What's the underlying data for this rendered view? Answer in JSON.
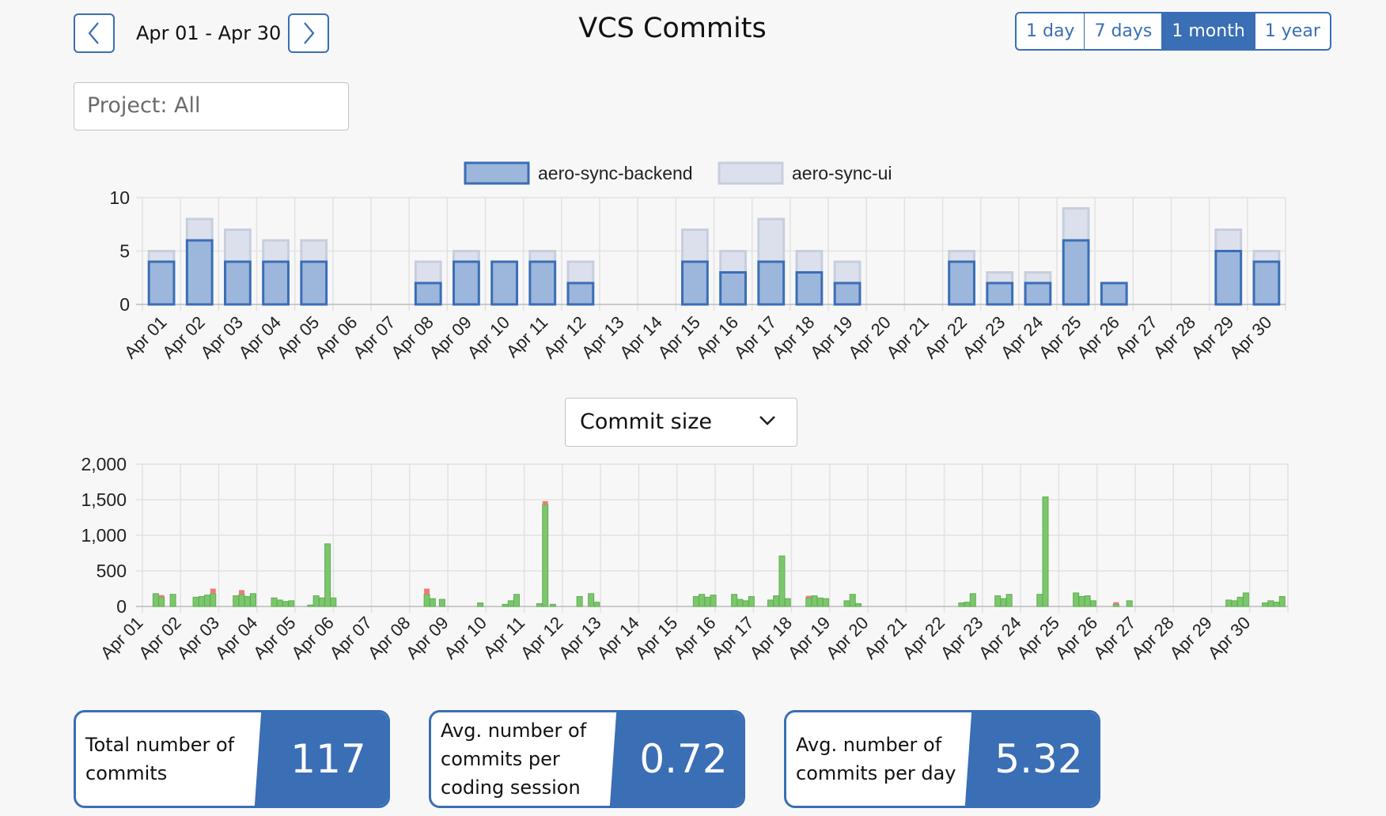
{
  "header": {
    "date_range": "Apr 01 - Apr 30",
    "title": "VCS Commits",
    "ranges": [
      "1 day",
      "7 days",
      "1 month",
      "1 year"
    ],
    "active_range": "1 month",
    "prev_icon": "chevron-left-icon",
    "next_icon": "chevron-right-icon"
  },
  "filters": {
    "project": "Project: All",
    "metric": "Commit size",
    "metric_icon": "chevron-down-icon"
  },
  "colors": {
    "accent": "#3a6eb5",
    "backend_fill": "#9db6dc",
    "ui_fill": "#dbe0ec",
    "added": "#7cc66c",
    "removed": "#ee7b7b"
  },
  "chart_data": [
    {
      "type": "bar",
      "stacked": true,
      "categories": [
        "Apr 01",
        "Apr 02",
        "Apr 03",
        "Apr 04",
        "Apr 05",
        "Apr 06",
        "Apr 07",
        "Apr 08",
        "Apr 09",
        "Apr 10",
        "Apr 11",
        "Apr 12",
        "Apr 13",
        "Apr 14",
        "Apr 15",
        "Apr 16",
        "Apr 17",
        "Apr 18",
        "Apr 19",
        "Apr 20",
        "Apr 21",
        "Apr 22",
        "Apr 23",
        "Apr 24",
        "Apr 25",
        "Apr 26",
        "Apr 27",
        "Apr 28",
        "Apr 29",
        "Apr 30"
      ],
      "series": [
        {
          "name": "aero-sync-backend",
          "values": [
            4,
            6,
            4,
            4,
            4,
            0,
            0,
            2,
            4,
            4,
            4,
            2,
            0,
            0,
            4,
            3,
            4,
            3,
            2,
            0,
            0,
            4,
            2,
            2,
            6,
            2,
            0,
            0,
            5,
            4
          ]
        },
        {
          "name": "aero-sync-ui",
          "values": [
            1,
            2,
            3,
            2,
            2,
            0,
            0,
            2,
            1,
            0,
            1,
            2,
            0,
            0,
            3,
            2,
            4,
            2,
            2,
            0,
            0,
            1,
            1,
            1,
            3,
            0,
            0,
            0,
            2,
            1
          ]
        }
      ],
      "yticks": [
        "0",
        "5",
        "10"
      ],
      "ylim": [
        0,
        10
      ],
      "legend": "top-center",
      "grid": true
    },
    {
      "type": "bar",
      "categories": [
        "Apr 01",
        "Apr 02",
        "Apr 03",
        "Apr 04",
        "Apr 05",
        "Apr 06",
        "Apr 07",
        "Apr 08",
        "Apr 09",
        "Apr 10",
        "Apr 11",
        "Apr 12",
        "Apr 13",
        "Apr 14",
        "Apr 15",
        "Apr 16",
        "Apr 17",
        "Apr 18",
        "Apr 19",
        "Apr 20",
        "Apr 21",
        "Apr 22",
        "Apr 23",
        "Apr 24",
        "Apr 25",
        "Apr 26",
        "Apr 27",
        "Apr 28",
        "Apr 29",
        "Apr 30"
      ],
      "commits": [
        {
          "day": 0.35,
          "added": 180,
          "removed": 0
        },
        {
          "day": 0.5,
          "added": 130,
          "removed": 30
        },
        {
          "day": 0.8,
          "added": 170,
          "removed": 0
        },
        {
          "day": 1.4,
          "added": 130,
          "removed": 0
        },
        {
          "day": 1.55,
          "added": 140,
          "removed": 0
        },
        {
          "day": 1.7,
          "added": 160,
          "removed": 0
        },
        {
          "day": 1.85,
          "added": 180,
          "removed": 70
        },
        {
          "day": 2.45,
          "added": 150,
          "removed": 0
        },
        {
          "day": 2.6,
          "added": 170,
          "removed": 60
        },
        {
          "day": 2.75,
          "added": 140,
          "removed": 0
        },
        {
          "day": 2.9,
          "added": 180,
          "removed": 0
        },
        {
          "day": 3.45,
          "added": 120,
          "removed": 0
        },
        {
          "day": 3.6,
          "added": 90,
          "removed": 0
        },
        {
          "day": 3.75,
          "added": 70,
          "removed": 0
        },
        {
          "day": 3.9,
          "added": 80,
          "removed": 0
        },
        {
          "day": 4.4,
          "added": 20,
          "removed": 0
        },
        {
          "day": 4.55,
          "added": 150,
          "removed": 0
        },
        {
          "day": 4.7,
          "added": 120,
          "removed": 0
        },
        {
          "day": 4.85,
          "added": 880,
          "removed": 0
        },
        {
          "day": 5.0,
          "added": 120,
          "removed": 0
        },
        {
          "day": 7.45,
          "added": 170,
          "removed": 80
        },
        {
          "day": 7.6,
          "added": 110,
          "removed": 0
        },
        {
          "day": 7.85,
          "added": 100,
          "removed": 0
        },
        {
          "day": 8.85,
          "added": 50,
          "removed": 0
        },
        {
          "day": 9.5,
          "added": 30,
          "removed": 0
        },
        {
          "day": 9.65,
          "added": 80,
          "removed": 0
        },
        {
          "day": 9.8,
          "added": 170,
          "removed": 0
        },
        {
          "day": 10.4,
          "added": 40,
          "removed": 0
        },
        {
          "day": 10.55,
          "added": 1430,
          "removed": 50
        },
        {
          "day": 10.75,
          "added": 30,
          "removed": 0
        },
        {
          "day": 11.45,
          "added": 140,
          "removed": 0
        },
        {
          "day": 11.75,
          "added": 180,
          "removed": 0
        },
        {
          "day": 11.9,
          "added": 60,
          "removed": 0
        },
        {
          "day": 14.5,
          "added": 140,
          "removed": 0
        },
        {
          "day": 14.65,
          "added": 170,
          "removed": 0
        },
        {
          "day": 14.8,
          "added": 130,
          "removed": 0
        },
        {
          "day": 14.95,
          "added": 160,
          "removed": 0
        },
        {
          "day": 15.5,
          "added": 170,
          "removed": 0
        },
        {
          "day": 15.65,
          "added": 100,
          "removed": 0
        },
        {
          "day": 15.8,
          "added": 80,
          "removed": 0
        },
        {
          "day": 15.95,
          "added": 140,
          "removed": 0
        },
        {
          "day": 16.45,
          "added": 90,
          "removed": 0
        },
        {
          "day": 16.6,
          "added": 150,
          "removed": 0
        },
        {
          "day": 16.75,
          "added": 710,
          "removed": 0
        },
        {
          "day": 16.9,
          "added": 110,
          "removed": 0
        },
        {
          "day": 17.45,
          "added": 120,
          "removed": 30
        },
        {
          "day": 17.6,
          "added": 150,
          "removed": 0
        },
        {
          "day": 17.75,
          "added": 120,
          "removed": 0
        },
        {
          "day": 17.9,
          "added": 110,
          "removed": 0
        },
        {
          "day": 18.45,
          "added": 80,
          "removed": 0
        },
        {
          "day": 18.6,
          "added": 170,
          "removed": 0
        },
        {
          "day": 18.75,
          "added": 40,
          "removed": 0
        },
        {
          "day": 21.45,
          "added": 50,
          "removed": 0
        },
        {
          "day": 21.6,
          "added": 60,
          "removed": 0
        },
        {
          "day": 21.75,
          "added": 180,
          "removed": 0
        },
        {
          "day": 22.4,
          "added": 150,
          "removed": 0
        },
        {
          "day": 22.55,
          "added": 110,
          "removed": 0
        },
        {
          "day": 22.7,
          "added": 170,
          "removed": 0
        },
        {
          "day": 23.5,
          "added": 170,
          "removed": 0
        },
        {
          "day": 23.65,
          "added": 1540,
          "removed": 0
        },
        {
          "day": 24.45,
          "added": 190,
          "removed": 0
        },
        {
          "day": 24.6,
          "added": 140,
          "removed": 0
        },
        {
          "day": 24.75,
          "added": 150,
          "removed": 0
        },
        {
          "day": 24.9,
          "added": 80,
          "removed": 0
        },
        {
          "day": 25.5,
          "added": 30,
          "removed": 30
        },
        {
          "day": 25.85,
          "added": 80,
          "removed": 0
        },
        {
          "day": 28.45,
          "added": 90,
          "removed": 0
        },
        {
          "day": 28.6,
          "added": 80,
          "removed": 0
        },
        {
          "day": 28.75,
          "added": 130,
          "removed": 0
        },
        {
          "day": 28.9,
          "added": 190,
          "removed": 0
        },
        {
          "day": 29.4,
          "added": 50,
          "removed": 0
        },
        {
          "day": 29.55,
          "added": 80,
          "removed": 0
        },
        {
          "day": 29.7,
          "added": 60,
          "removed": 0
        },
        {
          "day": 29.85,
          "added": 140,
          "removed": 0
        }
      ],
      "yticks": [
        "0",
        "500",
        "1,000",
        "1,500",
        "2,000"
      ],
      "ylim": [
        0,
        2000
      ],
      "grid": true
    }
  ],
  "stats": [
    {
      "label": "Total number of commits",
      "value": "117"
    },
    {
      "label": "Avg. number of commits per coding session",
      "value": "0.72"
    },
    {
      "label": "Avg. number of commits per day",
      "value": "5.32"
    }
  ]
}
